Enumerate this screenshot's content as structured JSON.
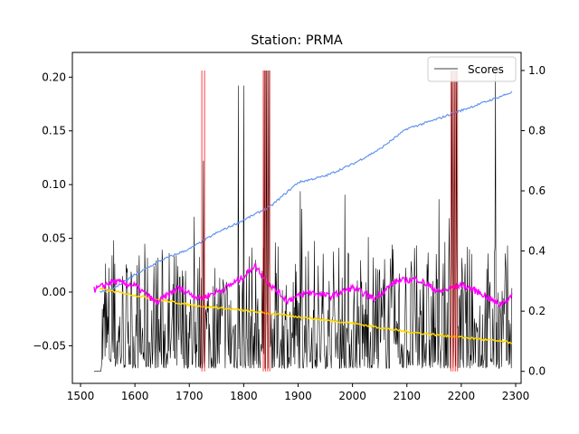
{
  "chart_data": {
    "type": "line",
    "title": "Station: PRMA",
    "xlabel": "",
    "ylabel": "",
    "xlim": [
      1485,
      2310
    ],
    "ylim_left": [
      -0.085,
      0.223
    ],
    "ylim_right": [
      -0.04,
      1.06
    ],
    "x_ticks": [
      1500,
      1600,
      1700,
      1800,
      1900,
      2000,
      2100,
      2200,
      2300
    ],
    "y_ticks_left": [
      -0.05,
      0.0,
      0.05,
      0.1,
      0.15,
      0.2
    ],
    "y_ticks_left_labels": [
      "−0.05",
      "0.00",
      "0.05",
      "0.10",
      "0.15",
      "0.20"
    ],
    "y_ticks_right": [
      0.0,
      0.2,
      0.4,
      0.6,
      0.8,
      1.0
    ],
    "y_ticks_right_labels": [
      "0.0",
      "0.2",
      "0.4",
      "0.6",
      "0.8",
      "1.0"
    ],
    "legend": {
      "position": "top-right",
      "entries": [
        "Scores"
      ]
    },
    "colors": {
      "scores": "#000000",
      "trend": "#6495ed",
      "daily": "#ff00ff",
      "smooth": "#ffd700",
      "anomaly": "#ff0000"
    },
    "series": [
      {
        "name": "Scores",
        "axis": "right",
        "x_range": [
          1525,
          2293
        ],
        "baseline": 0.04,
        "notable_peaks": [
          {
            "x": 1726,
            "y": 0.7
          },
          {
            "x": 1790,
            "y": 0.95
          },
          {
            "x": 1800,
            "y": 0.95
          },
          {
            "x": 1838,
            "y": 1.0
          },
          {
            "x": 1842,
            "y": 1.0
          },
          {
            "x": 1846,
            "y": 1.0
          },
          {
            "x": 2183,
            "y": 1.0
          },
          {
            "x": 2187,
            "y": 1.0
          },
          {
            "x": 2191,
            "y": 1.0
          },
          {
            "x": 2263,
            "y": 1.0
          }
        ]
      },
      {
        "axis": "left",
        "points": [
          [
            1535,
            0.0
          ],
          [
            1560,
            0.003
          ],
          [
            1600,
            0.016
          ],
          [
            1650,
            0.03
          ],
          [
            1700,
            0.04
          ],
          [
            1750,
            0.055
          ],
          [
            1800,
            0.067
          ],
          [
            1850,
            0.08
          ],
          [
            1900,
            0.102
          ],
          [
            1950,
            0.108
          ],
          [
            2000,
            0.119
          ],
          [
            2050,
            0.133
          ],
          [
            2100,
            0.152
          ],
          [
            2150,
            0.16
          ],
          [
            2200,
            0.169
          ],
          [
            2250,
            0.178
          ],
          [
            2293,
            0.186
          ]
        ]
      },
      {
        "axis": "left",
        "points": [
          [
            1525,
            0.002
          ],
          [
            1560,
            0.01
          ],
          [
            1600,
            0.006
          ],
          [
            1640,
            -0.01
          ],
          [
            1680,
            0.004
          ],
          [
            1720,
            -0.006
          ],
          [
            1760,
            0.002
          ],
          [
            1800,
            0.014
          ],
          [
            1820,
            0.025
          ],
          [
            1850,
            0.006
          ],
          [
            1880,
            -0.008
          ],
          [
            1920,
            0.0
          ],
          [
            1960,
            -0.004
          ],
          [
            2000,
            0.004
          ],
          [
            2040,
            -0.006
          ],
          [
            2080,
            0.01
          ],
          [
            2120,
            0.012
          ],
          [
            2160,
            0.0
          ],
          [
            2200,
            0.007
          ],
          [
            2240,
            -0.002
          ],
          [
            2270,
            -0.012
          ],
          [
            2293,
            -0.004
          ]
        ]
      },
      {
        "axis": "left",
        "points": [
          [
            1535,
            0.003
          ],
          [
            1600,
            -0.003
          ],
          [
            1700,
            -0.012
          ],
          [
            1800,
            -0.017
          ],
          [
            1900,
            -0.023
          ],
          [
            2000,
            -0.029
          ],
          [
            2100,
            -0.037
          ],
          [
            2200,
            -0.042
          ],
          [
            2293,
            -0.047
          ]
        ]
      }
    ],
    "anomaly_lines_x": [
      1723,
      1728,
      1836,
      1840,
      1844,
      1848,
      2181,
      2185,
      2189,
      2193
    ]
  }
}
